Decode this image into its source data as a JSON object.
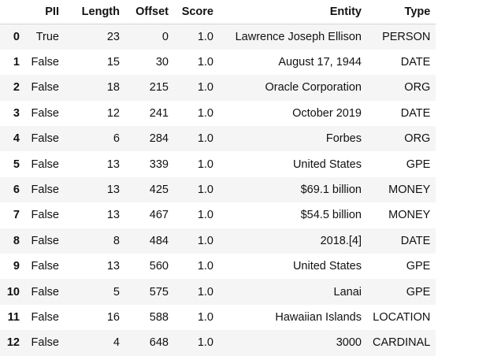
{
  "table": {
    "columns": [
      "",
      "PII",
      "Length",
      "Offset",
      "Score",
      "Entity",
      "Type"
    ],
    "rows": [
      {
        "index": "0",
        "pii": "True",
        "length": "23",
        "offset": "0",
        "score": "1.0",
        "entity": "Lawrence Joseph Ellison",
        "type": "PERSON"
      },
      {
        "index": "1",
        "pii": "False",
        "length": "15",
        "offset": "30",
        "score": "1.0",
        "entity": "August 17, 1944",
        "type": "DATE"
      },
      {
        "index": "2",
        "pii": "False",
        "length": "18",
        "offset": "215",
        "score": "1.0",
        "entity": "Oracle Corporation",
        "type": "ORG"
      },
      {
        "index": "3",
        "pii": "False",
        "length": "12",
        "offset": "241",
        "score": "1.0",
        "entity": "October 2019",
        "type": "DATE"
      },
      {
        "index": "4",
        "pii": "False",
        "length": "6",
        "offset": "284",
        "score": "1.0",
        "entity": "Forbes",
        "type": "ORG"
      },
      {
        "index": "5",
        "pii": "False",
        "length": "13",
        "offset": "339",
        "score": "1.0",
        "entity": "United States",
        "type": "GPE"
      },
      {
        "index": "6",
        "pii": "False",
        "length": "13",
        "offset": "425",
        "score": "1.0",
        "entity": "$69.1 billion",
        "type": "MONEY"
      },
      {
        "index": "7",
        "pii": "False",
        "length": "13",
        "offset": "467",
        "score": "1.0",
        "entity": "$54.5 billion",
        "type": "MONEY"
      },
      {
        "index": "8",
        "pii": "False",
        "length": "8",
        "offset": "484",
        "score": "1.0",
        "entity": "2018.[4]",
        "type": "DATE"
      },
      {
        "index": "9",
        "pii": "False",
        "length": "13",
        "offset": "560",
        "score": "1.0",
        "entity": "United States",
        "type": "GPE"
      },
      {
        "index": "10",
        "pii": "False",
        "length": "5",
        "offset": "575",
        "score": "1.0",
        "entity": "Lanai",
        "type": "GPE"
      },
      {
        "index": "11",
        "pii": "False",
        "length": "16",
        "offset": "588",
        "score": "1.0",
        "entity": "Hawaiian Islands",
        "type": "LOCATION"
      },
      {
        "index": "12",
        "pii": "False",
        "length": "4",
        "offset": "648",
        "score": "1.0",
        "entity": "3000",
        "type": "CARDINAL"
      }
    ]
  },
  "colors": {
    "stripe": "#f5f5f5",
    "text": "#111111",
    "header_rule": "#d4d4d4"
  }
}
